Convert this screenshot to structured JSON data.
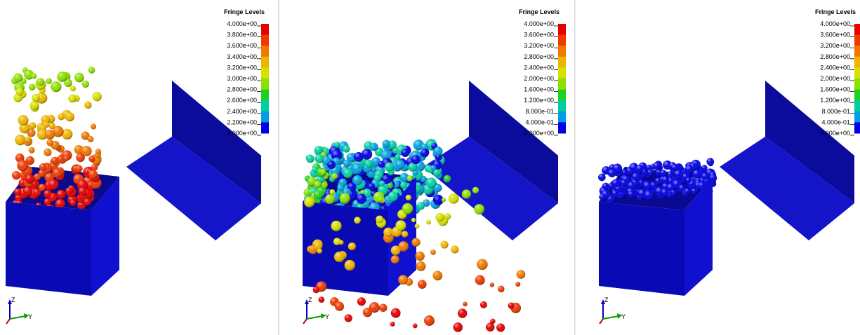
{
  "panels": [
    {
      "legend": {
        "title": "Fringe Levels",
        "labels": [
          "4.000e+00",
          "3.800e+00",
          "3.600e+00",
          "3.400e+00",
          "3.200e+00",
          "3.000e+00",
          "2.800e+00",
          "2.600e+00",
          "2.400e+00",
          "2.200e+00",
          "2.000e+00"
        ],
        "colors": [
          "#e60000",
          "#ee3a00",
          "#f07800",
          "#eeb400",
          "#d8e000",
          "#8ee000",
          "#20d020",
          "#00d0a0",
          "#00a0e0",
          "#0000e6"
        ]
      },
      "triad": {
        "z": "Z",
        "y": "Y"
      }
    },
    {
      "legend": {
        "title": "Fringe Levels",
        "labels": [
          "4.000e+00",
          "3.600e+00",
          "3.200e+00",
          "2.800e+00",
          "2.400e+00",
          "2.000e+00",
          "1.600e+00",
          "1.200e+00",
          "8.000e-01",
          "4.000e-01",
          "0.000e+00"
        ],
        "colors": [
          "#e60000",
          "#ee3a00",
          "#f07800",
          "#eeb400",
          "#d8e000",
          "#8ee000",
          "#20d020",
          "#00d0a0",
          "#00a0e0",
          "#0000e6"
        ]
      },
      "triad": {
        "z": "Z",
        "y": "Y"
      }
    },
    {
      "legend": {
        "title": "Fringe Levels",
        "labels": [
          "4.000e+00",
          "3.600e+00",
          "3.200e+00",
          "2.800e+00",
          "2.400e+00",
          "2.000e+00",
          "1.600e+00",
          "1.200e+00",
          "8.000e-01",
          "4.000e-01",
          "0.000e+00"
        ],
        "colors": [
          "#e60000",
          "#ee3a00",
          "#f07800",
          "#eeb400",
          "#d8e000",
          "#8ee000",
          "#20d020",
          "#00d0a0",
          "#00a0e0",
          "#0000e6"
        ]
      },
      "triad": {
        "z": "Z",
        "y": "Y"
      }
    }
  ]
}
